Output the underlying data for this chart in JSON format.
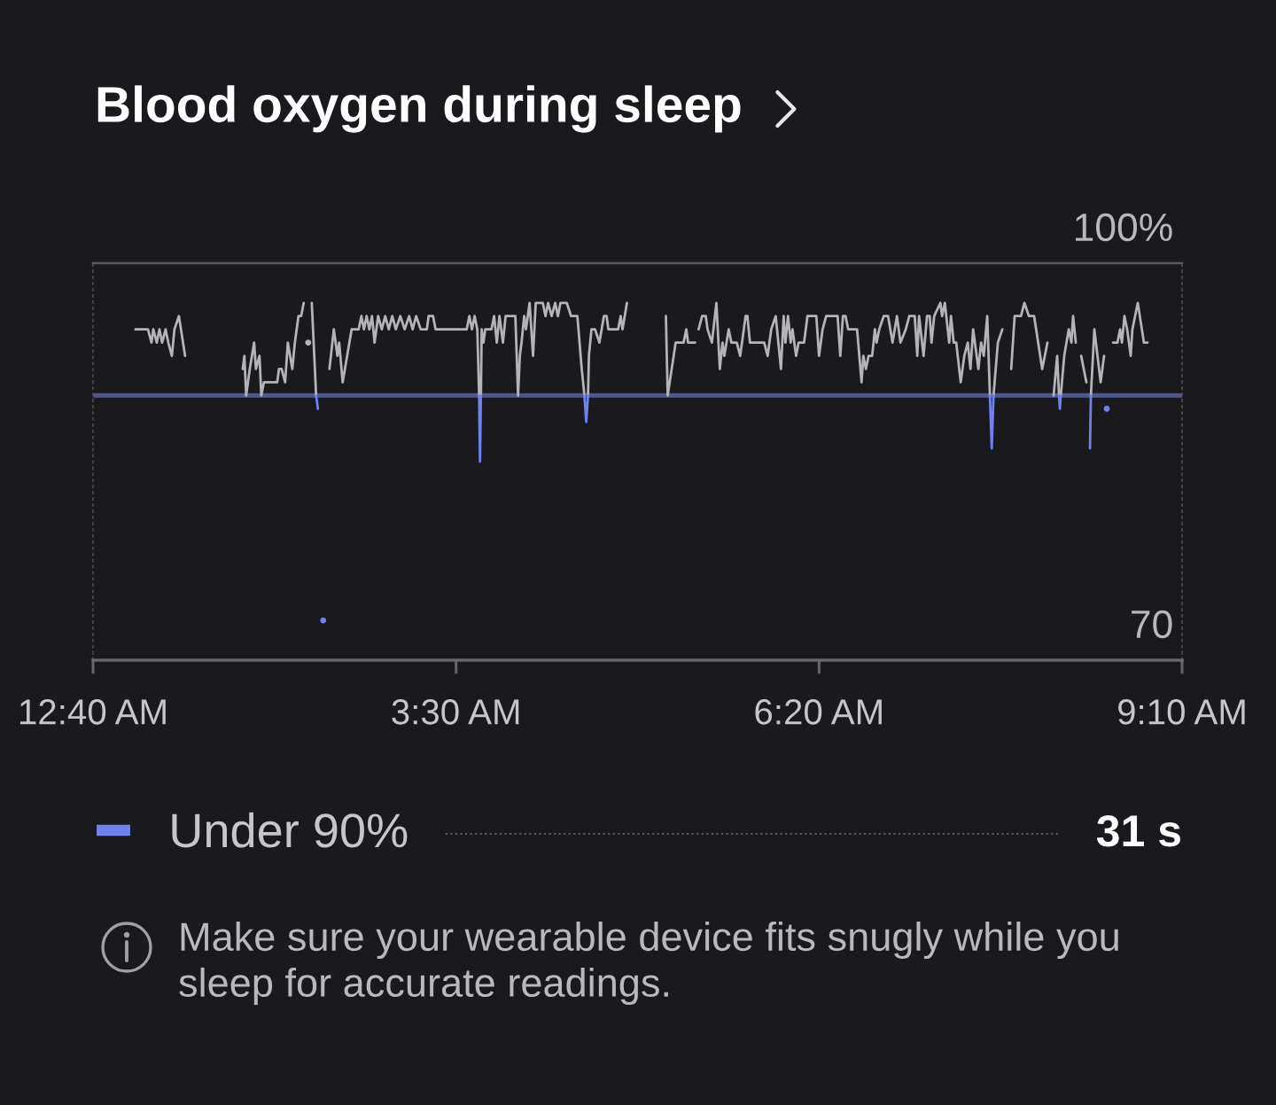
{
  "chart_data": {
    "type": "line",
    "title": "Blood oxygen during sleep",
    "xlim": [
      0.6667,
      9.1667
    ],
    "xticks": [
      {
        "value": 0.6667,
        "label": "12:40 AM"
      },
      {
        "value": 3.5,
        "label": "3:30 AM"
      },
      {
        "value": 6.3333,
        "label": "6:20 AM"
      },
      {
        "value": 9.1667,
        "label": "9:10 AM"
      }
    ],
    "ylim": [
      70,
      100
    ],
    "yticks": [
      70,
      {
        "value": 100,
        "label": "100%"
      }
    ],
    "ref_lines": [
      {
        "axis": "y",
        "value": 90,
        "color": "#4f5889"
      }
    ],
    "legend": "bottom",
    "series": [
      {
        "color": "#b4b4b8",
        "x": [
          0.998,
          1.095,
          1.123,
          1.137,
          1.164,
          1.185,
          1.206,
          1.233,
          1.254,
          1.282,
          1.302,
          1.337,
          1.385,
          1.6,
          1.835,
          1.848,
          1.862,
          1.89,
          1.924,
          1.938,
          1.966,
          1.98,
          2.0,
          2.104,
          2.118,
          2.139,
          2.166,
          2.187,
          2.222,
          2.242,
          2.27,
          2.291,
          2.311,
          2.34,
          2.374,
          2.408,
          2.46,
          2.512,
          2.546,
          2.574,
          2.588,
          2.615,
          2.65,
          2.685,
          2.74,
          2.761,
          2.781,
          2.802,
          2.823,
          2.844,
          2.864,
          2.892,
          2.92,
          2.947,
          2.975,
          3.002,
          3.03,
          3.065,
          3.099,
          3.134,
          3.161,
          3.189,
          3.224,
          3.272,
          3.286,
          3.32,
          3.341,
          3.583,
          3.604,
          3.624,
          3.645,
          3.666,
          3.68,
          3.687,
          3.694,
          3.7,
          3.714,
          3.728,
          3.776,
          3.797,
          3.818,
          3.839,
          3.866,
          3.887,
          3.963,
          3.984,
          3.998,
          4.011,
          4.032,
          4.046,
          4.074,
          4.101,
          4.122,
          4.177,
          4.198,
          4.219,
          4.246,
          4.274,
          4.295,
          4.315,
          4.364,
          4.398,
          4.447,
          4.481,
          4.502,
          4.516,
          4.53,
          4.537,
          4.557,
          4.585,
          4.619,
          4.654,
          4.675,
          4.689,
          4.765,
          4.785,
          4.799,
          4.834,
          5.0,
          5.138,
          5.152,
          5.214,
          5.276,
          5.297,
          5.311,
          5.366,
          5.38,
          5.393,
          5.421,
          5.449,
          5.463,
          5.497,
          5.532,
          5.559,
          5.58,
          5.594,
          5.628,
          5.649,
          5.691,
          5.718,
          5.76,
          5.774,
          5.794,
          5.905,
          5.932,
          5.96,
          5.995,
          6.036,
          6.057,
          6.071,
          6.091,
          6.112,
          6.126,
          6.154,
          6.174,
          6.216,
          6.243,
          6.312,
          6.333,
          6.361,
          6.389,
          6.478,
          6.499,
          6.52,
          6.54,
          6.561,
          6.63,
          6.665,
          6.679,
          6.699,
          6.72,
          6.748,
          6.769,
          6.782,
          6.803,
          6.838,
          6.872,
          6.907,
          6.941,
          6.969,
          7.01,
          7.038,
          7.08,
          7.1,
          7.114,
          7.149,
          7.176,
          7.197,
          7.211,
          7.232,
          7.28,
          7.294,
          7.315,
          7.349,
          7.363,
          7.384,
          7.404,
          7.439,
          7.467,
          7.494,
          7.515,
          7.536,
          7.577,
          7.598,
          7.619,
          7.646,
          7.667,
          7.681,
          7.695,
          7.729,
          7.764,
          7.8,
          7.833,
          7.86,
          7.909,
          7.936,
          7.971,
          8.012,
          8.075,
          8.116,
          8.14,
          8.164,
          8.192,
          8.206,
          8.213,
          8.22,
          8.247,
          8.282,
          8.303,
          8.316,
          8.337,
          8.36,
          8.379,
          8.42,
          8.44,
          8.455,
          8.482,
          8.531,
          8.558,
          8.6,
          8.628,
          8.662,
          8.683,
          8.697,
          8.717,
          8.738,
          8.766,
          8.779,
          8.821,
          8.869,
          8.897
        ],
        "values": [
          95,
          95,
          94,
          95,
          94,
          95,
          94,
          95,
          94,
          93,
          95,
          96,
          93,
          null,
          92,
          93,
          90,
          92,
          94,
          92,
          93,
          90,
          91,
          91,
          92,
          92,
          91,
          94,
          92,
          94,
          96,
          96,
          97,
          null,
          97,
          90,
          null,
          92,
          95,
          93,
          94,
          91,
          93,
          95,
          95,
          96,
          95,
          96,
          95,
          96,
          94,
          96,
          95,
          96,
          95,
          96,
          95,
          96,
          95,
          96,
          95,
          96,
          95,
          95,
          96,
          96,
          95,
          95,
          96,
          95,
          96,
          95,
          90,
          null,
          90,
          95,
          94,
          95,
          95,
          96,
          94,
          96,
          94,
          96,
          96,
          90,
          93,
          94,
          96,
          95,
          97,
          93,
          97,
          97,
          96,
          97,
          96,
          97,
          96,
          97,
          97,
          96,
          96,
          92,
          90,
          null,
          90,
          93,
          95,
          95,
          94,
          96,
          96,
          95,
          95,
          96,
          95,
          97,
          null,
          96,
          90,
          94,
          94,
          95,
          94,
          94,
          null,
          95,
          96,
          96,
          95,
          94,
          97,
          92,
          94,
          93,
          95,
          94,
          94,
          93,
          96,
          96,
          94,
          94,
          93,
          95,
          96,
          92,
          96,
          94,
          96,
          94,
          95,
          93,
          94,
          94,
          96,
          96,
          93,
          95,
          96,
          96,
          93,
          96,
          96,
          95,
          95,
          91,
          93,
          92,
          93,
          93,
          95,
          94,
          95,
          96,
          96,
          94,
          96,
          94,
          95,
          96,
          96,
          93,
          96,
          93,
          96,
          96,
          94,
          96,
          97,
          96,
          97,
          94,
          96,
          94,
          94,
          91,
          93,
          94,
          92,
          95,
          92,
          94,
          93,
          96,
          90,
          null,
          90,
          94,
          95,
          null,
          92,
          96,
          96,
          97,
          96,
          96,
          92,
          94,
          null,
          90,
          93,
          90,
          null,
          90,
          93,
          95,
          94,
          96,
          94,
          null,
          93,
          91,
          null,
          90,
          95,
          91,
          93,
          null,
          94,
          94,
          95,
          94,
          96,
          95,
          93,
          95,
          97,
          94,
          94
        ]
      },
      {
        "name": "Under 90%",
        "color": "#7182f0",
        "x": [
          2.408,
          2.422,
          3.0,
          3.68,
          3.687,
          3.694,
          4.2,
          4.502,
          4.516,
          4.53,
          6.0,
          7.667,
          7.681,
          7.695,
          7.9,
          8.206,
          8.213,
          8.22,
          8.3,
          8.448,
          8.455
        ],
        "values": [
          90,
          89,
          null,
          90,
          85,
          90,
          null,
          90,
          88,
          90,
          null,
          90,
          86,
          90,
          null,
          90,
          89,
          90,
          null,
          86,
          90
        ]
      },
      {
        "type": "scatter",
        "color": "#7182f0",
        "x": [
          2.463,
          8.579
        ],
        "values": [
          73,
          89
        ]
      },
      {
        "type": "scatter",
        "color": "#b4b4b8",
        "x": [
          2.346
        ],
        "values": [
          94
        ]
      }
    ],
    "annotations": [
      "31 s",
      "Make sure your wearable device fits snugly while you sleep for accurate readings."
    ]
  }
}
